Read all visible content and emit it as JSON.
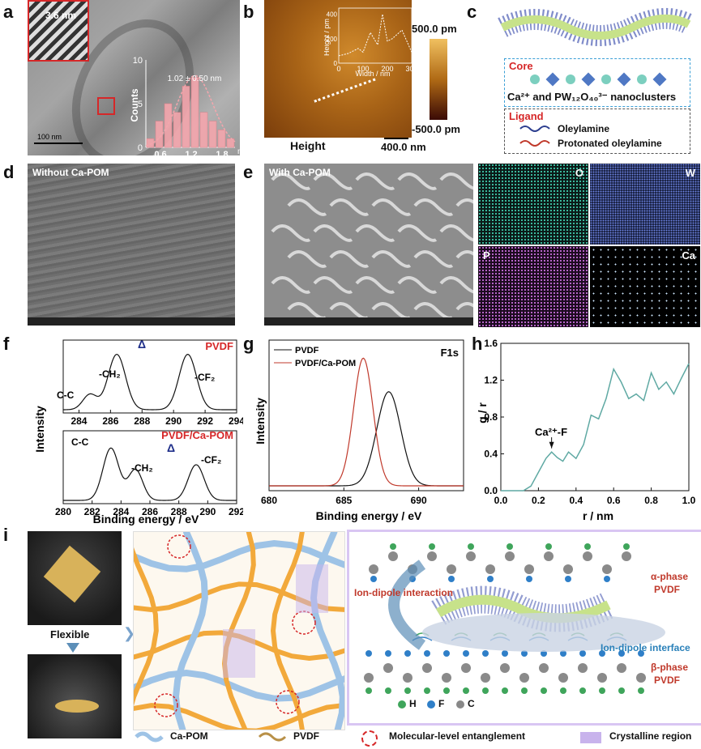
{
  "panels": {
    "a": {
      "label": "a",
      "inset_text": "3.6 nm",
      "scale_bar": "100 nm",
      "chart_ylabel": "Counts",
      "mean_label": "1.02 ± 0.50 nm",
      "unit": "nm"
    },
    "b": {
      "label": "b",
      "inset_xlabel": "Width / nm",
      "inset_ylabel": "Height / pm",
      "caption": "Height",
      "scale_bar": "400.0 nm",
      "colorbar_max": "500.0 pm",
      "colorbar_min": "-500.0 pm"
    },
    "c": {
      "label": "c",
      "core_title": "Core",
      "core_text": "Ca²⁺ and PW₁₂O₄₀³⁻ nanoclusters",
      "ligand_title": "Ligand",
      "ligand_items": [
        "Oleylamine",
        "Protonated oleylamine"
      ]
    },
    "d": {
      "label": "d",
      "caption": "Without Ca-POM"
    },
    "e": {
      "label": "e",
      "caption": "With Ca-POM",
      "eds": [
        "O",
        "W",
        "P",
        "Ca"
      ]
    },
    "f": {
      "label": "f",
      "top_series": "PVDF",
      "bottom_series": "PVDF/Ca-POM",
      "delta": "Δ",
      "peaks_top": [
        "C-C",
        "-CH₂",
        "-CF₂"
      ],
      "peaks_bottom": [
        "C-C",
        "-CH₂",
        "-CF₂"
      ]
    },
    "g": {
      "label": "g",
      "annotation": "F1s"
    },
    "h": {
      "label": "h",
      "annotation": "Ca²⁺-F"
    },
    "i": {
      "label": "i",
      "flexible": "Flexible",
      "legend_ca_pom": "Ca-POM",
      "legend_pvdf": "PVDF",
      "legend_entangle": "Molecular-level entanglement",
      "legend_crystal": "Crystalline region",
      "ion_dipole_interaction": "Ion-dipole interaction",
      "ion_dipole_interface": "Ion-dipole interface",
      "alpha_phase": "α-phase",
      "beta_phase": "β-phase",
      "pvdf_word": "PVDF",
      "atoms": [
        "H",
        "F",
        "C"
      ]
    }
  },
  "colors": {
    "red": "#d62728",
    "pink": "#f4a6ad",
    "teal": "#5fa9a3",
    "navy": "#1f2f8a",
    "orange": "#f2a93b",
    "lightblue": "#9ec3e6",
    "purple": "#c8b3ec"
  },
  "chart_data": [
    {
      "type": "bar",
      "panel": "a",
      "xlabel": "",
      "ylabel": "Counts",
      "categories": [
        "0.2",
        "0.4",
        "0.6",
        "0.8",
        "1.0",
        "1.2",
        "1.4",
        "1.6",
        "1.8",
        "2.0"
      ],
      "x_ticks": [
        "0.6",
        "1.2",
        "1.8"
      ],
      "y_ticks": [
        "0",
        "5",
        "10"
      ],
      "values": [
        1,
        3,
        5,
        4,
        7,
        8,
        4,
        3,
        2,
        1
      ],
      "ylim": [
        0,
        10
      ]
    },
    {
      "type": "line",
      "panel": "b-inset",
      "xlabel": "Width / nm",
      "ylabel": "Height / pm",
      "x_ticks": [
        "0",
        "100",
        "200",
        "300"
      ],
      "y_ticks": [
        "0",
        "200",
        "400"
      ],
      "xlim": [
        0,
        300
      ],
      "ylim": [
        0,
        450
      ],
      "x": [
        0,
        40,
        80,
        100,
        130,
        160,
        180,
        200,
        220,
        260,
        300
      ],
      "y": [
        60,
        80,
        120,
        90,
        250,
        150,
        400,
        180,
        200,
        270,
        90
      ]
    },
    {
      "type": "line",
      "panel": "f",
      "xlabel": "Binding energy / eV",
      "ylabel": "Intensity",
      "top": {
        "name": "PVDF",
        "x_ticks": [
          "284",
          "286",
          "288",
          "290",
          "292",
          "294"
        ],
        "xlim": [
          283,
          294
        ]
      },
      "bottom": {
        "name": "PVDF/Ca-POM",
        "x_ticks": [
          "280",
          "282",
          "284",
          "286",
          "288",
          "290",
          "292"
        ],
        "xlim": [
          280,
          292
        ]
      }
    },
    {
      "type": "line",
      "panel": "g",
      "xlabel": "Binding energy / eV",
      "ylabel": "Intensity",
      "x_ticks": [
        "680",
        "685",
        "690"
      ],
      "xlim": [
        680,
        693
      ],
      "series": [
        {
          "name": "PVDF",
          "center": 688.0,
          "color": "#111111"
        },
        {
          "name": "PVDF/Ca-POM",
          "center": 686.3,
          "color": "#c0392b"
        }
      ]
    },
    {
      "type": "line",
      "panel": "h",
      "xlabel": "r / nm",
      "ylabel": "g / r",
      "x_ticks": [
        "0.0",
        "0.2",
        "0.4",
        "0.6",
        "0.8",
        "1.0"
      ],
      "y_ticks": [
        "0.0",
        "0.4",
        "0.8",
        "1.2",
        "1.6"
      ],
      "xlim": [
        0,
        1.0
      ],
      "ylim": [
        0,
        1.6
      ],
      "x": [
        0.0,
        0.12,
        0.16,
        0.2,
        0.24,
        0.27,
        0.3,
        0.33,
        0.36,
        0.4,
        0.44,
        0.48,
        0.52,
        0.56,
        0.6,
        0.64,
        0.68,
        0.72,
        0.76,
        0.8,
        0.84,
        0.88,
        0.92,
        0.96,
        1.0
      ],
      "y": [
        0.0,
        0.0,
        0.05,
        0.2,
        0.35,
        0.42,
        0.36,
        0.32,
        0.42,
        0.35,
        0.5,
        0.82,
        0.78,
        1.0,
        1.32,
        1.18,
        1.0,
        1.05,
        0.98,
        1.28,
        1.1,
        1.18,
        1.05,
        1.22,
        1.38
      ]
    }
  ]
}
